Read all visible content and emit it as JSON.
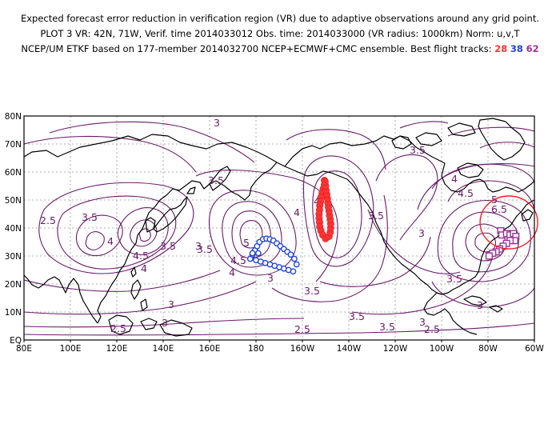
{
  "header": {
    "line1": "Expected forecast error reduction in verification region (VR) due to adaptive observations around any grid point.",
    "line2": "PLOT 3 VR: 42N, 71W, Verif. time 2014033012 Obs. time: 2014033000 (VR radius: 1000km) Norm: u,v,T",
    "line3_prefix": "NCEP/UM ETKF based on 177-member 2014032700 NCEP+ECMWF+CMC ensemble. Best flight tracks:",
    "track_red": "28",
    "track_blue": "38",
    "track_purple": "62"
  },
  "map": {
    "lon_labels": [
      "80E",
      "100E",
      "120E",
      "140E",
      "160E",
      "180",
      "160W",
      "140W",
      "120W",
      "100W",
      "80W",
      "60W"
    ],
    "lat_labels": [
      "EQ",
      "10N",
      "20N",
      "30N",
      "40N",
      "50N",
      "60N",
      "70N",
      "80N"
    ],
    "contour_labels": [
      {
        "text": "3"
      },
      {
        "text": "3.5"
      },
      {
        "text": "2.5"
      },
      {
        "text": "3.5"
      },
      {
        "text": "4"
      },
      {
        "text": "4.5"
      },
      {
        "text": "4"
      },
      {
        "text": "3.5"
      },
      {
        "text": "3"
      },
      {
        "text": "3.5"
      },
      {
        "text": "5"
      },
      {
        "text": "4.5"
      },
      {
        "text": "4"
      },
      {
        "text": "4"
      },
      {
        "text": "3"
      },
      {
        "text": "3.5"
      },
      {
        "text": "4"
      },
      {
        "text": "3.5"
      },
      {
        "text": "3.5"
      },
      {
        "text": "3"
      },
      {
        "text": "3.5"
      },
      {
        "text": "4"
      },
      {
        "text": "4.5"
      },
      {
        "text": "5"
      },
      {
        "text": "6.5"
      },
      {
        "text": "3.5"
      },
      {
        "text": "3"
      },
      {
        "text": "3"
      },
      {
        "text": "3.5"
      },
      {
        "text": "2.5"
      },
      {
        "text": "3"
      },
      {
        "text": "2.5"
      },
      {
        "text": "3"
      },
      {
        "text": "2.5"
      }
    ],
    "colors": {
      "contour": "#6a1a6a",
      "red_track": "#ff3333",
      "blue_track": "#2244dd",
      "purple_track": "#993399",
      "verification_circle": "#ee2222"
    },
    "red_track_points": [
      [
        -150.5,
        57
      ],
      [
        -150.5,
        55.5
      ],
      [
        -151,
        54
      ],
      [
        -151.5,
        52.5
      ],
      [
        -152,
        51
      ],
      [
        -152.2,
        49.5
      ],
      [
        -152.5,
        48
      ],
      [
        -152.6,
        46.5
      ],
      [
        -152.8,
        45
      ],
      [
        -152.8,
        43.5
      ],
      [
        -152.6,
        42
      ],
      [
        -152.5,
        40.5
      ],
      [
        -152,
        39
      ],
      [
        -151.2,
        37.5
      ],
      [
        -150,
        36.2
      ],
      [
        -148.5,
        37
      ],
      [
        -148,
        38.5
      ],
      [
        -147.8,
        40
      ],
      [
        -147.8,
        41.5
      ],
      [
        -148,
        43
      ],
      [
        -148.3,
        44.5
      ],
      [
        -148.5,
        46
      ],
      [
        -148.8,
        47.5
      ],
      [
        -149,
        49
      ],
      [
        -149.2,
        50.5
      ],
      [
        -149.5,
        52
      ],
      [
        -149.8,
        53.5
      ],
      [
        -150,
        55
      ],
      [
        -150.2,
        56.5
      ]
    ],
    "blue_track_points": [
      [
        -182.5,
        29
      ],
      [
        -181.5,
        30.5
      ],
      [
        -180.5,
        32
      ],
      [
        -179.5,
        33.5
      ],
      [
        -178.5,
        35
      ],
      [
        -177,
        36
      ],
      [
        -175.5,
        36.2
      ],
      [
        -174,
        36
      ],
      [
        -172.5,
        35.5
      ],
      [
        -171,
        34.5
      ],
      [
        -169.5,
        33.5
      ],
      [
        -168,
        32.5
      ],
      [
        -166.5,
        31.5
      ],
      [
        -165,
        30.5
      ],
      [
        -163.5,
        29
      ],
      [
        -162.5,
        27
      ],
      [
        -164,
        24.5
      ],
      [
        -166,
        25
      ],
      [
        -168,
        25.5
      ],
      [
        -170,
        26
      ],
      [
        -172,
        26.5
      ],
      [
        -174,
        27
      ],
      [
        -176,
        27.5
      ],
      [
        -178,
        28
      ],
      [
        -180,
        28.5
      ],
      [
        -181.5,
        31
      ],
      [
        -179,
        31
      ]
    ],
    "purple_track_points": [
      [
        -74.5,
        39
      ],
      [
        -74,
        37.5
      ],
      [
        -72,
        38
      ],
      [
        -70.5,
        37.5
      ],
      [
        -69,
        38
      ],
      [
        -68,
        37
      ],
      [
        -68.5,
        35.5
      ],
      [
        -70.5,
        35.5
      ],
      [
        -72,
        34.5
      ],
      [
        -73.5,
        33.5
      ],
      [
        -75,
        32.5
      ],
      [
        -76.5,
        31.5
      ],
      [
        -78,
        31
      ],
      [
        -79.5,
        30
      ]
    ],
    "verification_region": {
      "lat": 42,
      "lon": -71,
      "radius_km": 1000
    }
  }
}
